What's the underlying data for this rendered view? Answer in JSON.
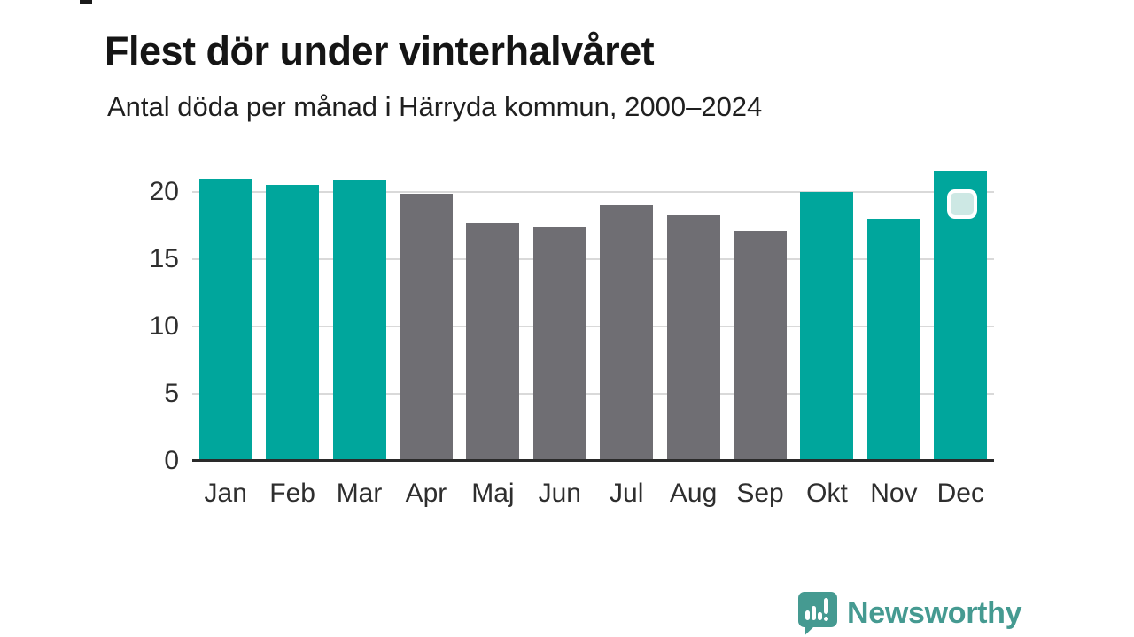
{
  "header": {
    "title": "Flest dör under vinterhalvåret",
    "subtitle": "Antal döda per månad i Härryda kommun, 2000–2024"
  },
  "chart_data": {
    "type": "bar",
    "title": "Flest dör under vinterhalvåret",
    "subtitle": "Antal döda per månad i Härryda kommun, 2000–2024",
    "categories": [
      "Jan",
      "Feb",
      "Mar",
      "Apr",
      "Maj",
      "Jun",
      "Jul",
      "Aug",
      "Sep",
      "Okt",
      "Nov",
      "Dec"
    ],
    "values": [
      21.0,
      20.5,
      20.9,
      19.9,
      17.7,
      17.4,
      19.0,
      18.3,
      17.1,
      20.0,
      18.0,
      21.6
    ],
    "bar_color_keys": [
      "winter",
      "winter",
      "winter",
      "summer",
      "summer",
      "summer",
      "summer",
      "summer",
      "summer",
      "winter",
      "winter",
      "winter"
    ],
    "y_ticks": [
      0,
      5,
      10,
      15,
      20
    ],
    "y_tick_labels": [
      "0",
      "5",
      "10",
      "15",
      "20"
    ],
    "ylim": [
      0,
      22
    ],
    "xlabel": "",
    "ylabel": "",
    "grid": "horizontal",
    "legend": "none",
    "annotation_marker": {
      "category": "Dec",
      "shape": "rounded-square-handle"
    }
  },
  "colors": {
    "winter_bar": "#00a69c",
    "summer_bar": "#6f6e73",
    "grid": "#d9d9d9",
    "axis_line": "#2a2a2a",
    "tick_text": "#2e2e2e",
    "badge_fill": "#cde8e4",
    "badge_border": "#ffffff",
    "brand": "#459a91"
  },
  "footer": {
    "brand": "Newsworthy",
    "logo_icon": "speech-bubble-bar-chart-exclamation"
  }
}
